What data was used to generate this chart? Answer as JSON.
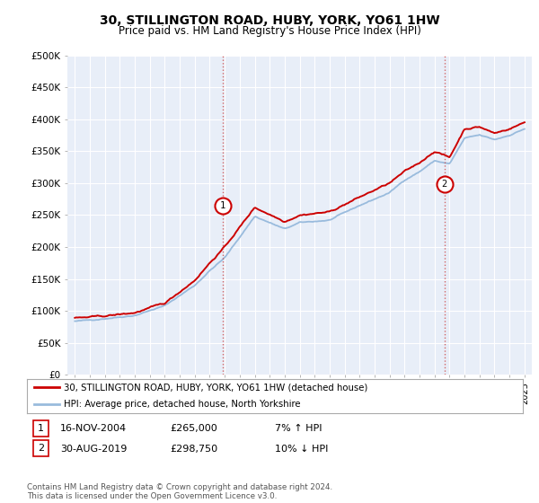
{
  "title": "30, STILLINGTON ROAD, HUBY, YORK, YO61 1HW",
  "subtitle": "Price paid vs. HM Land Registry's House Price Index (HPI)",
  "title_fontsize": 10,
  "subtitle_fontsize": 8.5,
  "ylim": [
    0,
    500000
  ],
  "yticks": [
    0,
    50000,
    100000,
    150000,
    200000,
    250000,
    300000,
    350000,
    400000,
    450000,
    500000
  ],
  "ytick_labels": [
    "£0",
    "£50K",
    "£100K",
    "£150K",
    "£200K",
    "£250K",
    "£300K",
    "£350K",
    "£400K",
    "£450K",
    "£500K"
  ],
  "background_color": "#ffffff",
  "plot_bg_color": "#e8eef8",
  "grid_color": "#ffffff",
  "line1_color": "#cc0000",
  "line2_color": "#99bbdd",
  "transaction1_x": 2004.88,
  "transaction1_y": 265000,
  "transaction1_label": "1",
  "transaction2_x": 2019.66,
  "transaction2_y": 298750,
  "transaction2_label": "2",
  "legend_label1": "30, STILLINGTON ROAD, HUBY, YORK, YO61 1HW (detached house)",
  "legend_label2": "HPI: Average price, detached house, North Yorkshire",
  "footnote": "Contains HM Land Registry data © Crown copyright and database right 2024.\nThis data is licensed under the Open Government Licence v3.0.",
  "xmin": 1994.5,
  "xmax": 2025.5,
  "hpi_anchors_x": [
    1995,
    1997,
    1999,
    2001,
    2003,
    2004,
    2005,
    2007,
    2009,
    2010,
    2012,
    2014,
    2016,
    2017,
    2018,
    2019,
    2020,
    2021,
    2022,
    2023,
    2024,
    2025
  ],
  "hpi_anchors_y": [
    83000,
    88000,
    93000,
    108000,
    140000,
    163000,
    183000,
    248000,
    228000,
    238000,
    242000,
    265000,
    285000,
    305000,
    318000,
    335000,
    330000,
    370000,
    375000,
    368000,
    375000,
    385000
  ],
  "prop_anchors_x": [
    1995,
    1997,
    1999,
    2001,
    2003,
    2004,
    2005,
    2007,
    2009,
    2010,
    2012,
    2014,
    2016,
    2017,
    2018,
    2019,
    2020,
    2021,
    2022,
    2023,
    2024,
    2025
  ],
  "prop_anchors_y": [
    88000,
    92000,
    97000,
    112000,
    148000,
    175000,
    200000,
    262000,
    240000,
    250000,
    255000,
    278000,
    300000,
    318000,
    332000,
    350000,
    340000,
    385000,
    388000,
    378000,
    385000,
    395000
  ]
}
